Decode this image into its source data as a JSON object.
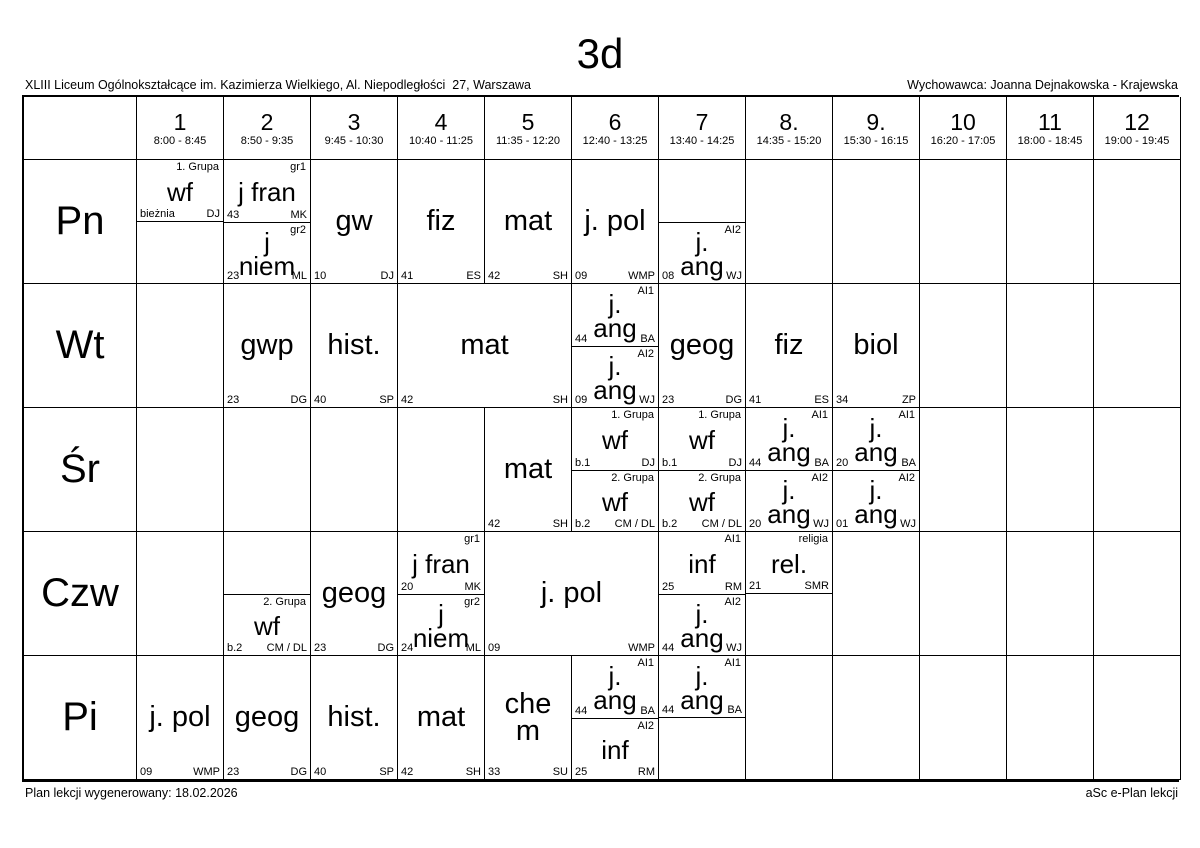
{
  "title": "3d",
  "header": {
    "school": "XLIII Liceum Ogólnokształcące im. Kazimierza Wielkiego, Al. Niepodległości  27, Warszawa",
    "tutor": "Wychowawca: Joanna Dejnakowska - Krajewska"
  },
  "periods": [
    {
      "num": "1",
      "time": "8:00 - 8:45"
    },
    {
      "num": "2",
      "time": "8:50 - 9:35"
    },
    {
      "num": "3",
      "time": "9:45 - 10:30"
    },
    {
      "num": "4",
      "time": "10:40 - 11:25"
    },
    {
      "num": "5",
      "time": "11:35 - 12:20"
    },
    {
      "num": "6",
      "time": "12:40 - 13:25"
    },
    {
      "num": "7",
      "time": "13:40 - 14:25"
    },
    {
      "num": "8.",
      "time": "14:35 - 15:20"
    },
    {
      "num": "9.",
      "time": "15:30 - 16:15"
    },
    {
      "num": "10",
      "time": "16:20 - 17:05"
    },
    {
      "num": "11",
      "time": "18:00 - 18:45"
    },
    {
      "num": "12",
      "time": "19:00 - 19:45"
    }
  ],
  "days": [
    {
      "label": "Pn",
      "cells": [
        {
          "col": 1,
          "span": 1,
          "lessons": [
            {
              "pos": "top",
              "tag": "1. Grupa",
              "subject": "wf",
              "room": "bieżnia",
              "teacher": "DJ"
            }
          ]
        },
        {
          "col": 2,
          "span": 1,
          "lessons": [
            {
              "pos": "top",
              "tag": "gr1",
              "subject": "j fran",
              "room": "43",
              "teacher": "MK"
            },
            {
              "pos": "bottom",
              "tag": "gr2",
              "subject": "j\nniem",
              "room": "23",
              "teacher": "ML"
            }
          ]
        },
        {
          "col": 3,
          "span": 1,
          "lessons": [
            {
              "pos": "full",
              "tag": "",
              "subject": "gw",
              "room": "10",
              "teacher": "DJ"
            }
          ]
        },
        {
          "col": 4,
          "span": 1,
          "lessons": [
            {
              "pos": "full",
              "tag": "",
              "subject": "fiz",
              "room": "41",
              "teacher": "ES"
            }
          ]
        },
        {
          "col": 5,
          "span": 1,
          "lessons": [
            {
              "pos": "full",
              "tag": "",
              "subject": "mat",
              "room": "42",
              "teacher": "SH"
            }
          ]
        },
        {
          "col": 6,
          "span": 1,
          "lessons": [
            {
              "pos": "full",
              "tag": "",
              "subject": "j. pol",
              "room": "09",
              "teacher": "WMP"
            }
          ]
        },
        {
          "col": 7,
          "span": 1,
          "lessons": [
            {
              "pos": "bottom",
              "tag": "AI2",
              "subject": "j.\nang",
              "room": "08",
              "teacher": "WJ"
            }
          ]
        }
      ]
    },
    {
      "label": "Wt",
      "cells": [
        {
          "col": 2,
          "span": 1,
          "lessons": [
            {
              "pos": "full",
              "tag": "",
              "subject": "gwp",
              "room": "23",
              "teacher": "DG"
            }
          ]
        },
        {
          "col": 3,
          "span": 1,
          "lessons": [
            {
              "pos": "full",
              "tag": "",
              "subject": "hist.",
              "room": "40",
              "teacher": "SP"
            }
          ]
        },
        {
          "col": 4,
          "span": 2,
          "lessons": [
            {
              "pos": "full",
              "tag": "",
              "subject": "mat",
              "room": "42",
              "teacher": "SH"
            }
          ]
        },
        {
          "col": 6,
          "span": 1,
          "lessons": [
            {
              "pos": "top",
              "tag": "AI1",
              "subject": "j.\nang",
              "room": "44",
              "teacher": "BA"
            },
            {
              "pos": "bottom",
              "tag": "AI2",
              "subject": "j.\nang",
              "room": "09",
              "teacher": "WJ"
            }
          ]
        },
        {
          "col": 7,
          "span": 1,
          "lessons": [
            {
              "pos": "full",
              "tag": "",
              "subject": "geog",
              "room": "23",
              "teacher": "DG"
            }
          ]
        },
        {
          "col": 8,
          "span": 1,
          "lessons": [
            {
              "pos": "full",
              "tag": "",
              "subject": "fiz",
              "room": "41",
              "teacher": "ES"
            }
          ]
        },
        {
          "col": 9,
          "span": 1,
          "lessons": [
            {
              "pos": "full",
              "tag": "",
              "subject": "biol",
              "room": "34",
              "teacher": "ZP"
            }
          ]
        }
      ]
    },
    {
      "label": "Śr",
      "cells": [
        {
          "col": 5,
          "span": 1,
          "lessons": [
            {
              "pos": "full",
              "tag": "",
              "subject": "mat",
              "room": "42",
              "teacher": "SH"
            }
          ]
        },
        {
          "col": 6,
          "span": 1,
          "lessons": [
            {
              "pos": "top",
              "tag": "1. Grupa",
              "subject": "wf",
              "room": "b.1",
              "teacher": "DJ"
            },
            {
              "pos": "bottom",
              "tag": "2. Grupa",
              "subject": "wf",
              "room": "b.2",
              "teacher": "CM / DL"
            }
          ]
        },
        {
          "col": 7,
          "span": 1,
          "lessons": [
            {
              "pos": "top",
              "tag": "1. Grupa",
              "subject": "wf",
              "room": "b.1",
              "teacher": "DJ"
            },
            {
              "pos": "bottom",
              "tag": "2. Grupa",
              "subject": "wf",
              "room": "b.2",
              "teacher": "CM / DL"
            }
          ]
        },
        {
          "col": 8,
          "span": 1,
          "lessons": [
            {
              "pos": "top",
              "tag": "AI1",
              "subject": "j.\nang",
              "room": "44",
              "teacher": "BA"
            },
            {
              "pos": "bottom",
              "tag": "AI2",
              "subject": "j.\nang",
              "room": "20",
              "teacher": "WJ"
            }
          ]
        },
        {
          "col": 9,
          "span": 1,
          "lessons": [
            {
              "pos": "top",
              "tag": "AI1",
              "subject": "j.\nang",
              "room": "20",
              "teacher": "BA"
            },
            {
              "pos": "bottom",
              "tag": "AI2",
              "subject": "j.\nang",
              "room": "01",
              "teacher": "WJ"
            }
          ]
        }
      ]
    },
    {
      "label": "Czw",
      "cells": [
        {
          "col": 2,
          "span": 1,
          "lessons": [
            {
              "pos": "bottom",
              "tag": "2. Grupa",
              "subject": "wf",
              "room": "b.2",
              "teacher": "CM / DL"
            }
          ]
        },
        {
          "col": 3,
          "span": 1,
          "lessons": [
            {
              "pos": "full",
              "tag": "",
              "subject": "geog",
              "room": "23",
              "teacher": "DG"
            }
          ]
        },
        {
          "col": 4,
          "span": 1,
          "lessons": [
            {
              "pos": "top",
              "tag": "gr1",
              "subject": "j fran",
              "room": "20",
              "teacher": "MK"
            },
            {
              "pos": "bottom",
              "tag": "gr2",
              "subject": "j\nniem",
              "room": "24",
              "teacher": "ML"
            }
          ]
        },
        {
          "col": 5,
          "span": 2,
          "lessons": [
            {
              "pos": "full",
              "tag": "",
              "subject": "j. pol",
              "room": "09",
              "teacher": "WMP"
            }
          ]
        },
        {
          "col": 7,
          "span": 1,
          "lessons": [
            {
              "pos": "top",
              "tag": "AI1",
              "subject": "inf",
              "room": "25",
              "teacher": "RM"
            },
            {
              "pos": "bottom",
              "tag": "AI2",
              "subject": "j.\nang",
              "room": "44",
              "teacher": "WJ"
            }
          ]
        },
        {
          "col": 8,
          "span": 1,
          "lessons": [
            {
              "pos": "top",
              "tag": "religia",
              "subject": "rel.",
              "room": "21",
              "teacher": "SMR"
            }
          ]
        }
      ]
    },
    {
      "label": "Pi",
      "cells": [
        {
          "col": 1,
          "span": 1,
          "lessons": [
            {
              "pos": "full",
              "tag": "",
              "subject": "j. pol",
              "room": "09",
              "teacher": "WMP"
            }
          ]
        },
        {
          "col": 2,
          "span": 1,
          "lessons": [
            {
              "pos": "full",
              "tag": "",
              "subject": "geog",
              "room": "23",
              "teacher": "DG"
            }
          ]
        },
        {
          "col": 3,
          "span": 1,
          "lessons": [
            {
              "pos": "full",
              "tag": "",
              "subject": "hist.",
              "room": "40",
              "teacher": "SP"
            }
          ]
        },
        {
          "col": 4,
          "span": 1,
          "lessons": [
            {
              "pos": "full",
              "tag": "",
              "subject": "mat",
              "room": "42",
              "teacher": "SH"
            }
          ]
        },
        {
          "col": 5,
          "span": 1,
          "lessons": [
            {
              "pos": "full",
              "tag": "",
              "subject": "che\nm",
              "room": "33",
              "teacher": "SU"
            }
          ]
        },
        {
          "col": 6,
          "span": 1,
          "lessons": [
            {
              "pos": "top",
              "tag": "AI1",
              "subject": "j.\nang",
              "room": "44",
              "teacher": "BA"
            },
            {
              "pos": "bottom",
              "tag": "AI2",
              "subject": "inf",
              "room": "25",
              "teacher": "RM"
            }
          ]
        },
        {
          "col": 7,
          "span": 1,
          "lessons": [
            {
              "pos": "top",
              "tag": "AI1",
              "subject": "j.\nang",
              "room": "44",
              "teacher": "BA"
            }
          ]
        }
      ]
    }
  ],
  "footer": {
    "left": "Plan lekcji wygenerowany: 18.02.2026",
    "right": "aSc e-Plan lekcji"
  }
}
